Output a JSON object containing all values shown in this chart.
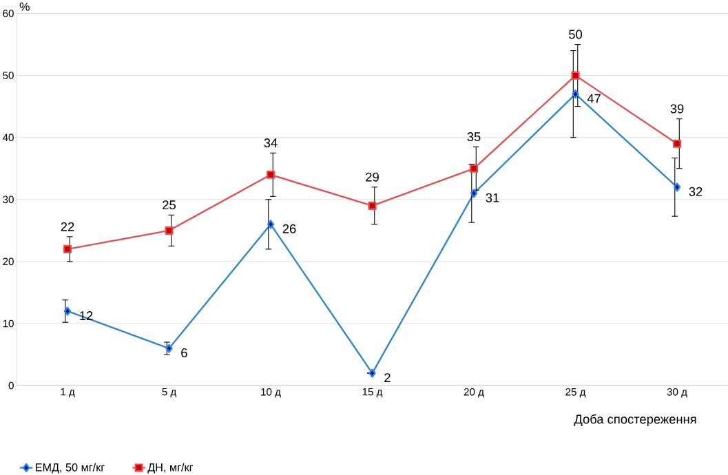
{
  "chart_data": {
    "type": "line",
    "ylabel": "%",
    "xlabel": "Доба спостереження",
    "categories": [
      "1 д",
      "5 д",
      "10 д",
      "15 д",
      "20 д",
      "25 д",
      "30 д"
    ],
    "ylim": [
      0,
      60
    ],
    "yticks": [
      0,
      10,
      20,
      30,
      40,
      50,
      60
    ],
    "grid": "y",
    "legend": "bottom left",
    "data_labels": true,
    "series": [
      {
        "name": "ЕМД, 50 мг/кг",
        "color": "#2e88c8",
        "marker": "diamond",
        "values": [
          12,
          6,
          26,
          2,
          31,
          47,
          32
        ],
        "errors": [
          1.8,
          1,
          4,
          null,
          4.7,
          7,
          4.7
        ]
      },
      {
        "name": "ДН, мг/кг",
        "color": "#e05050",
        "marker": "square",
        "values": [
          22,
          25,
          34,
          29,
          35,
          50,
          39
        ],
        "errors": [
          2,
          2.5,
          3.5,
          3,
          3.5,
          5,
          4
        ]
      }
    ]
  }
}
